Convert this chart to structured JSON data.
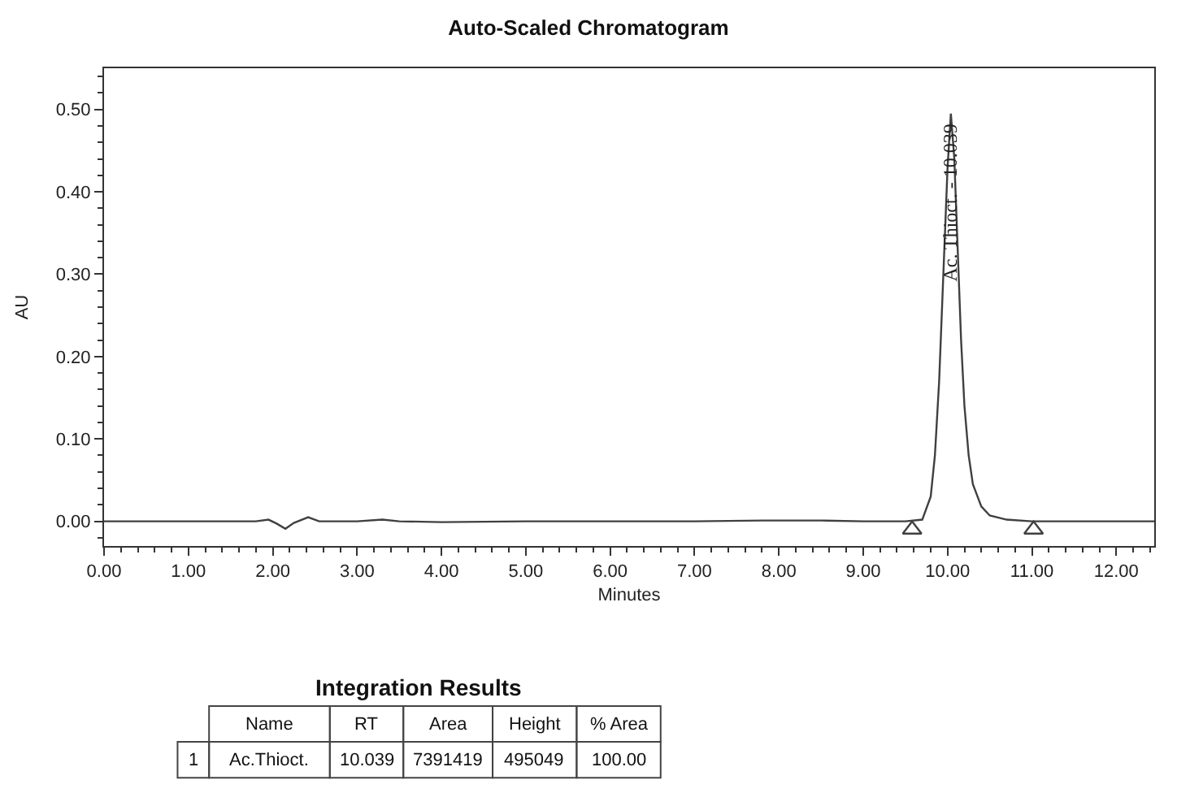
{
  "chart_data": {
    "type": "line",
    "title": "Auto-Scaled Chromatogram",
    "xlabel": "Minutes",
    "ylabel": "AU",
    "x": [
      0,
      1.8,
      1.95,
      2.05,
      2.15,
      2.25,
      2.42,
      2.55,
      3.0,
      3.3,
      3.5,
      4.0,
      5.0,
      7.0,
      7.8,
      8.5,
      9.0,
      9.5,
      9.7,
      9.8,
      9.85,
      9.9,
      9.95,
      10.0,
      10.039,
      10.08,
      10.12,
      10.16,
      10.2,
      10.25,
      10.3,
      10.4,
      10.5,
      10.7,
      11.0,
      12.45
    ],
    "series": [
      {
        "color": "#404040",
        "values": [
          0,
          0,
          0.002,
          -0.003,
          -0.009,
          -0.002,
          0.005,
          0,
          0,
          0.002,
          0,
          -0.001,
          0,
          0,
          0.001,
          0.001,
          0,
          0,
          0.002,
          0.03,
          0.08,
          0.17,
          0.3,
          0.43,
          0.495,
          0.44,
          0.33,
          0.22,
          0.14,
          0.08,
          0.045,
          0.018,
          0.007,
          0.002,
          0,
          0
        ]
      },
      {
        "type": "scatter",
        "marker": "triangle",
        "color": "#404040",
        "x": [
          9.58,
          11.02
        ],
        "values": [
          -0.01,
          -0.01
        ]
      }
    ],
    "xlim": [
      0,
      12.45
    ],
    "ylim": [
      -0.03,
      0.55
    ],
    "xticks": [
      {
        "value": 0,
        "label": "0.00"
      },
      {
        "value": 1,
        "label": "1.00"
      },
      {
        "value": 2,
        "label": "2.00"
      },
      {
        "value": 3,
        "label": "3.00"
      },
      {
        "value": 4,
        "label": "4.00"
      },
      {
        "value": 5,
        "label": "5.00"
      },
      {
        "value": 6,
        "label": "6.00"
      },
      {
        "value": 7,
        "label": "7.00"
      },
      {
        "value": 8,
        "label": "8.00"
      },
      {
        "value": 9,
        "label": "9.00"
      },
      {
        "value": 10,
        "label": "10.00"
      },
      {
        "value": 11,
        "label": "11.00"
      },
      {
        "value": 12,
        "label": "12.00"
      }
    ],
    "yticks": [
      {
        "value": 0,
        "label": "0.00"
      },
      {
        "value": 0.1,
        "label": "0.10"
      },
      {
        "value": 0.2,
        "label": "0.20"
      },
      {
        "value": 0.3,
        "label": "0.30"
      },
      {
        "value": 0.4,
        "label": "0.40"
      },
      {
        "value": 0.5,
        "label": "0.50"
      }
    ],
    "grid": false,
    "marker": "none",
    "line_style": "solid",
    "annotations": [
      {
        "text": "Ac. Thioct. - 10.039",
        "x": 10.039,
        "y": 0.495
      },
      "Integration Results",
      "Name",
      "RT",
      "Area",
      "Height",
      "% Area",
      "1",
      "Ac.Thioct.",
      "10.039",
      "7391419",
      "495049",
      "100.00"
    ]
  }
}
